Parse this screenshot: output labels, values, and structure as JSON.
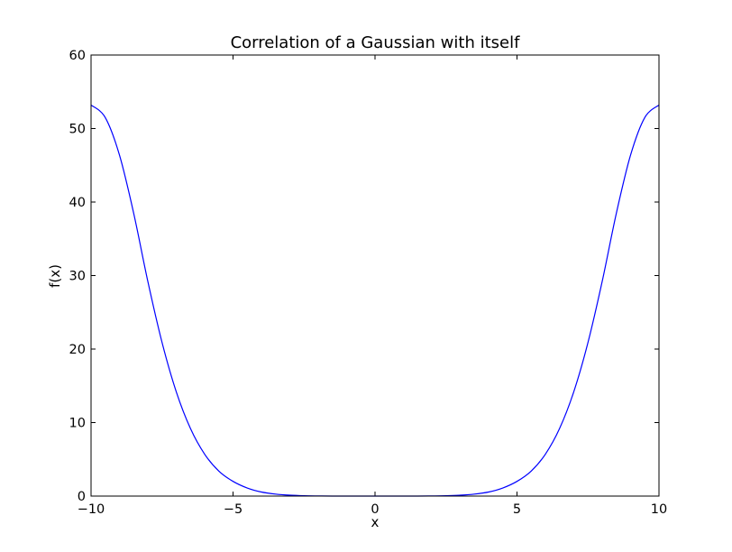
{
  "chart_data": {
    "type": "line",
    "title": "Correlation of a Gaussian with itself",
    "xlabel": "x",
    "ylabel": "f(x)",
    "xlim": [
      -10,
      10
    ],
    "ylim": [
      0,
      60
    ],
    "x_ticks": [
      -10,
      -5,
      0,
      5,
      10
    ],
    "x_tick_labels": [
      "−10",
      "−5",
      "0",
      "5",
      "10"
    ],
    "y_ticks": [
      0,
      10,
      20,
      30,
      40,
      50,
      60
    ],
    "y_tick_labels": [
      "0",
      "10",
      "20",
      "30",
      "40",
      "50",
      "60"
    ],
    "grid": false,
    "series": [
      {
        "color": "#0000ff",
        "x": [
          -10,
          -9.5,
          -9,
          -8.5,
          -8,
          -7.5,
          -7,
          -6.5,
          -6,
          -5.5,
          -5,
          -4.5,
          -4,
          -3.5,
          -3,
          -2.5,
          -2,
          -1.5,
          -1,
          -0.5,
          0,
          0.5,
          1,
          1.5,
          2,
          2.5,
          3,
          3.5,
          4,
          4.5,
          5,
          5.5,
          6,
          6.5,
          7,
          7.5,
          8,
          8.5,
          9,
          9.5,
          10
        ],
        "y": [
          53.2,
          51.5,
          46.4,
          38.5,
          29.2,
          20.9,
          14.2,
          9.2,
          5.7,
          3.4,
          2.0,
          1.1,
          0.55,
          0.27,
          0.12,
          0.05,
          0.02,
          0.0,
          0.0,
          0.0,
          0.0,
          0.0,
          0.0,
          0.0,
          0.02,
          0.05,
          0.12,
          0.27,
          0.55,
          1.1,
          2.0,
          3.4,
          5.7,
          9.2,
          14.2,
          20.9,
          29.2,
          38.5,
          46.4,
          51.5,
          53.2
        ]
      }
    ]
  }
}
